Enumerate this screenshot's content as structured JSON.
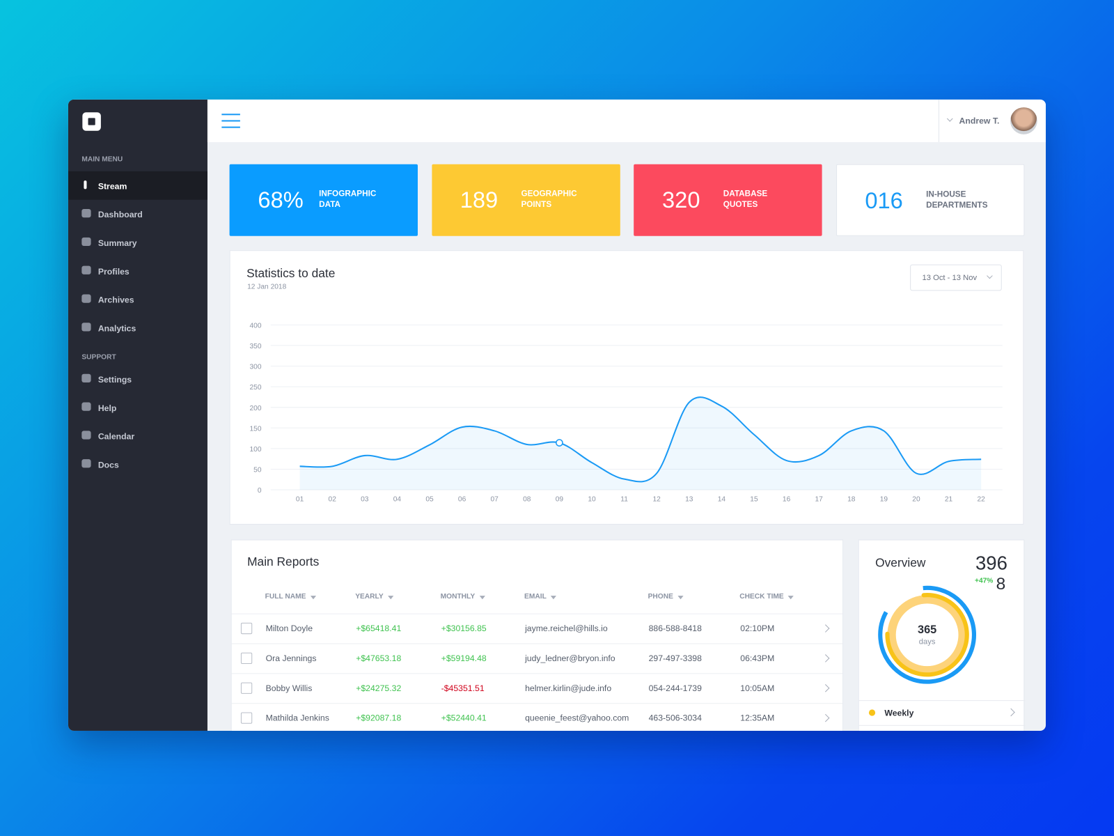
{
  "sidebar": {
    "sections": [
      {
        "title": "MAIN MENU",
        "items": [
          "Stream",
          "Dashboard",
          "Summary",
          "Profiles",
          "Archives",
          "Analytics"
        ]
      },
      {
        "title": "SUPPORT",
        "items": [
          "Settings",
          "Help",
          "Calendar",
          "Docs"
        ]
      }
    ]
  },
  "header": {
    "user": "Andrew T."
  },
  "cards": [
    {
      "value": "68%",
      "label": "INFOGRAPHIC DATA"
    },
    {
      "value": "189",
      "label": "GEOGRAPHIC POINTS"
    },
    {
      "value": "320",
      "label": "DATABASE QUOTES"
    },
    {
      "value": "016",
      "label": "IN-HOUSE DEPARTMENTS"
    }
  ],
  "chart_data": {
    "type": "line",
    "title": "Statistics to date",
    "subtitle": "12 Jan 2018",
    "date_range": "13 Oct - 13 Nov",
    "categories": [
      "01",
      "02",
      "03",
      "04",
      "05",
      "06",
      "07",
      "08",
      "09",
      "10",
      "11",
      "12",
      "13",
      "14",
      "15",
      "16",
      "17",
      "18",
      "19",
      "20",
      "21",
      "22"
    ],
    "values": [
      57,
      57,
      83,
      74,
      109,
      152,
      143,
      110,
      114,
      66,
      26,
      40,
      212,
      203,
      134,
      71,
      83,
      143,
      143,
      40,
      69,
      74
    ],
    "color": "#1a9af5",
    "ylim": [
      0,
      400
    ],
    "yticks": [
      0,
      50,
      100,
      150,
      200,
      250,
      300,
      350,
      400
    ],
    "grid": true,
    "highlighted_point": 8
  },
  "reports": {
    "title": "Main Reports",
    "columns": [
      "FULL NAME",
      "YEARLY",
      "MONTHLY",
      "EMAIL",
      "PHONE",
      "CHECK TIME"
    ],
    "rows": [
      [
        "Milton Doyle",
        "+$65418.41",
        "+$30156.85",
        "jayme.reichel@hills.io",
        "886-588-8418",
        "02:10PM"
      ],
      [
        "Ora Jennings",
        "+$47653.18",
        "+$59194.48",
        "judy_ledner@bryon.info",
        "297-497-3398",
        "06:43PM"
      ],
      [
        "Bobby Willis",
        "+$24275.32",
        "-$45351.51",
        "helmer.kirlin@jude.info",
        "054-244-1739",
        "10:05AM"
      ],
      [
        "Mathilda Jenkins",
        "+$92087.18",
        "+$52440.41",
        "queenie_feest@yahoo.com",
        "463-506-3034",
        "12:35AM"
      ]
    ]
  },
  "overview": {
    "title": "Overview",
    "total": "396",
    "change": "+47%",
    "extra": "8",
    "center_value": "365",
    "center_label": "days",
    "legend": [
      "Weekly"
    ]
  }
}
